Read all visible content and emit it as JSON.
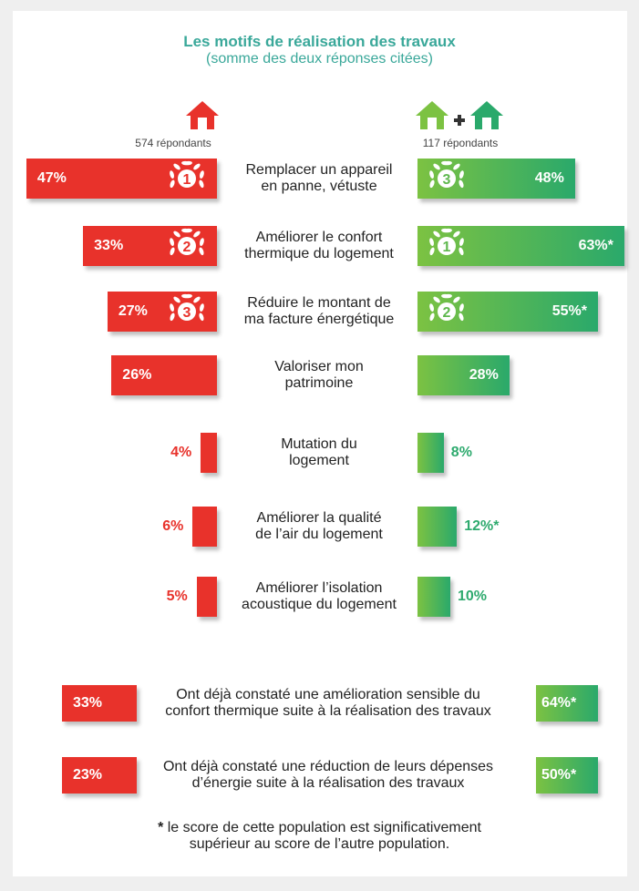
{
  "chart_data": {
    "type": "butterfly",
    "title": "Les motifs de réalisation des travaux",
    "subtitle": "(somme des deux réponses citées)",
    "categories": [
      "Remplacer un appareil\nen panne, vétuste",
      "Améliorer le confort\nthermique du logement",
      "Réduire le montant de\nma facture énergétique",
      "Valoriser mon\npatrimoine",
      "Mutation du\nlogement",
      "Améliorer la qualité\nde l’air du logement",
      "Améliorer l’isolation\nacoustique du logement"
    ],
    "series": [
      {
        "name": "574 répondants",
        "color": "#e8322b",
        "values": [
          47,
          33,
          27,
          26,
          4,
          6,
          5
        ],
        "value_labels": [
          "47%",
          "33%",
          "27%",
          "26%",
          "4%",
          "6%",
          "5%"
        ],
        "ranks": [
          1,
          2,
          3,
          null,
          null,
          null,
          null
        ]
      },
      {
        "name": "117 répondants",
        "color": "#2eaa6e",
        "values": [
          48,
          63,
          55,
          28,
          8,
          12,
          10
        ],
        "value_labels": [
          "48%",
          "63%*",
          "55%*",
          "28%",
          "8%",
          "12%*",
          "10%"
        ],
        "ranks": [
          3,
          1,
          2,
          null,
          null,
          null,
          null
        ]
      }
    ]
  },
  "summary": [
    {
      "text": "Ont déjà constaté une amélioration sensible du\nconfort thermique suite à la réalisation des travaux",
      "values": [
        33,
        64
      ],
      "value_labels": [
        "33%",
        "64%*"
      ]
    },
    {
      "text": "Ont déjà constaté une réduction de leurs dépenses\nd’énergie suite à la réalisation des travaux",
      "values": [
        23,
        50
      ],
      "value_labels": [
        "23%",
        "50%*"
      ]
    }
  ],
  "footnote": {
    "marker": "*",
    "text": " le score de cette population est significativement\nsupérieur au score de l’autre population."
  }
}
